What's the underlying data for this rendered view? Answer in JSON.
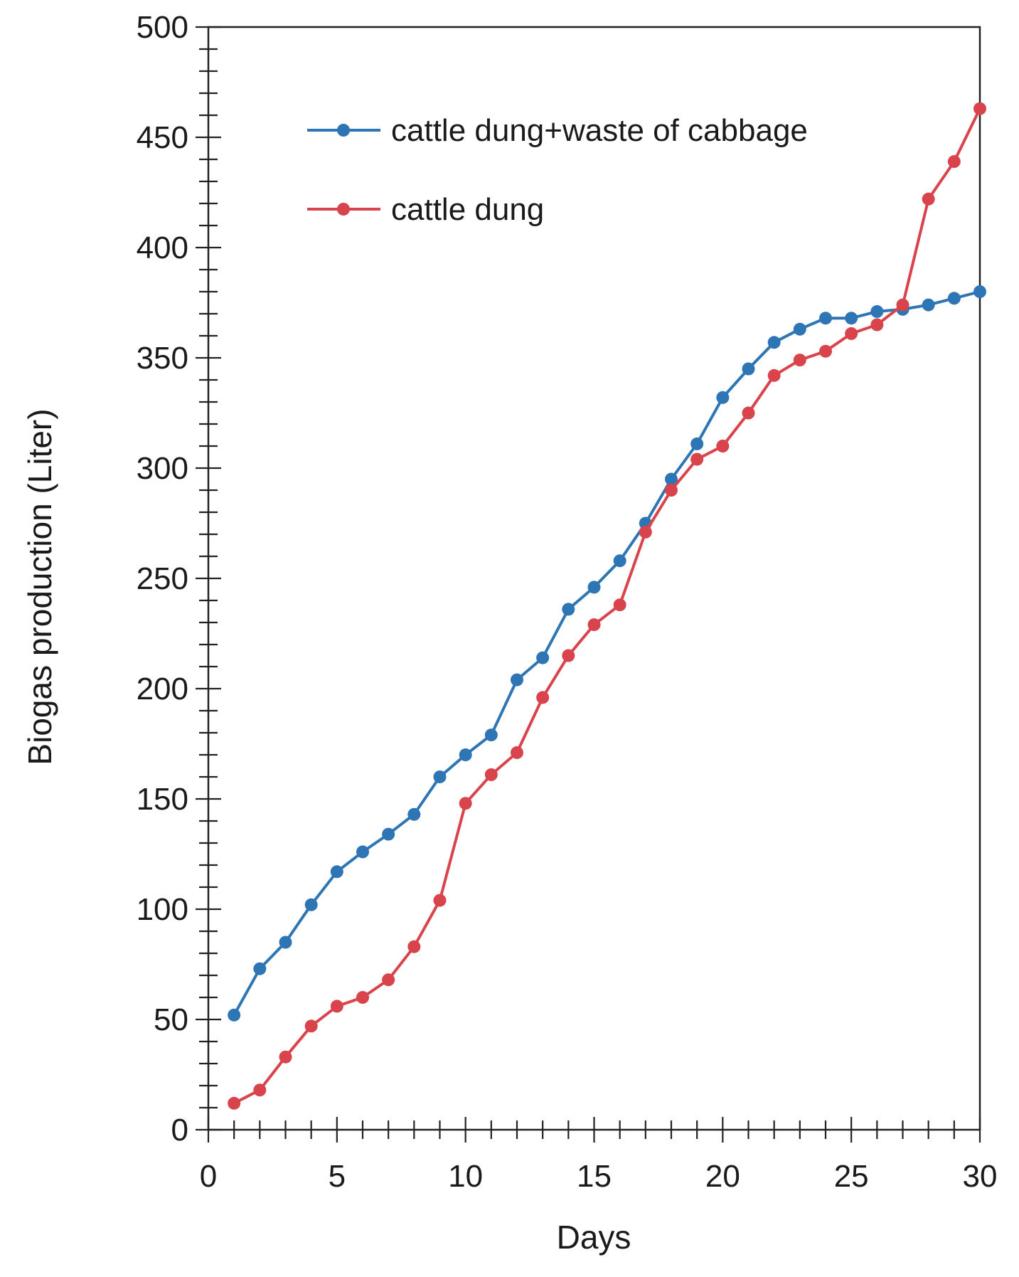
{
  "chart_data": {
    "type": "line",
    "title": "",
    "xlabel": "Days",
    "ylabel": "Biogas production (Liter)",
    "xlim": [
      0,
      30
    ],
    "ylim": [
      0,
      500
    ],
    "x_ticks": [
      0,
      5,
      10,
      15,
      20,
      25,
      30
    ],
    "x_tick_labels": [
      "0",
      "5",
      "10",
      "15",
      "20",
      "25",
      "30"
    ],
    "y_ticks": [
      0,
      50,
      100,
      150,
      200,
      250,
      300,
      350,
      400,
      450,
      500
    ],
    "y_tick_labels": [
      "0",
      "50",
      "100",
      "150",
      "200",
      "250",
      "300",
      "350",
      "400",
      "450",
      "500"
    ],
    "x_minor_step": 1,
    "y_minor_step": 10,
    "grid": false,
    "legend_position": "top-center",
    "x": [
      1,
      2,
      3,
      4,
      5,
      6,
      7,
      8,
      9,
      10,
      11,
      12,
      13,
      14,
      15,
      16,
      17,
      18,
      19,
      20,
      21,
      22,
      23,
      24,
      25,
      26,
      27,
      28,
      29,
      30
    ],
    "series": [
      {
        "name": "cattle dung+waste of cabbage",
        "color": "#2e75b6",
        "values": [
          52,
          73,
          85,
          102,
          117,
          126,
          134,
          143,
          160,
          170,
          179,
          204,
          214,
          236,
          246,
          258,
          275,
          295,
          311,
          332,
          345,
          357,
          363,
          368,
          368,
          371,
          372,
          374,
          377,
          380
        ]
      },
      {
        "name": "cattle dung",
        "color": "#d9434b",
        "values": [
          12,
          18,
          33,
          47,
          56,
          60,
          68,
          83,
          104,
          148,
          161,
          171,
          196,
          215,
          229,
          238,
          271,
          290,
          304,
          310,
          325,
          342,
          349,
          353,
          361,
          365,
          374,
          422,
          439,
          463
        ]
      }
    ]
  }
}
